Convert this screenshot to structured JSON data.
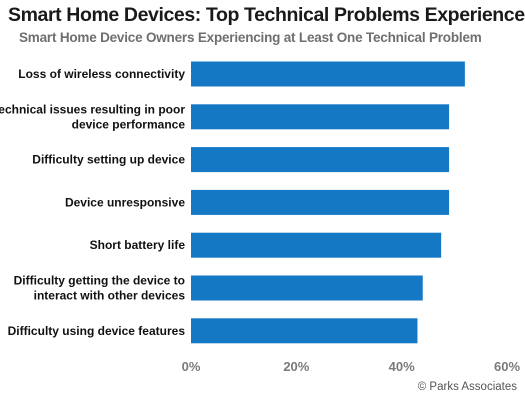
{
  "chart_data": {
    "type": "bar",
    "orientation": "horizontal",
    "title": "Smart Home Devices: Top Technical Problems Experienced",
    "subtitle": "Smart Home Device Owners Experiencing at Least One Technical Problem",
    "categories": [
      "Loss of wireless connectivity",
      "Technical issues resulting in poor device performance",
      "Difficulty setting up device",
      "Device unresponsive",
      "Short battery life",
      "Difficulty getting the device to interact with other devices",
      "Difficulty using device features"
    ],
    "category_lines": [
      [
        "Loss of wireless connectivity"
      ],
      [
        "Technical issues resulting in poor",
        "device performance"
      ],
      [
        "Difficulty setting up device"
      ],
      [
        "Device unresponsive"
      ],
      [
        "Short battery life"
      ],
      [
        "Difficulty getting the device to",
        "interact with other devices"
      ],
      [
        "Difficulty using device features"
      ]
    ],
    "values": [
      52,
      49,
      49,
      49,
      47.5,
      44,
      43
    ],
    "xlim": [
      0,
      60
    ],
    "xticks": [
      0,
      20,
      40,
      60
    ],
    "xtick_labels": [
      "0%",
      "20%",
      "40%",
      "60%"
    ],
    "bar_color": "#1478c4",
    "grid": false,
    "legend": "none"
  },
  "source": "© Parks Associates"
}
